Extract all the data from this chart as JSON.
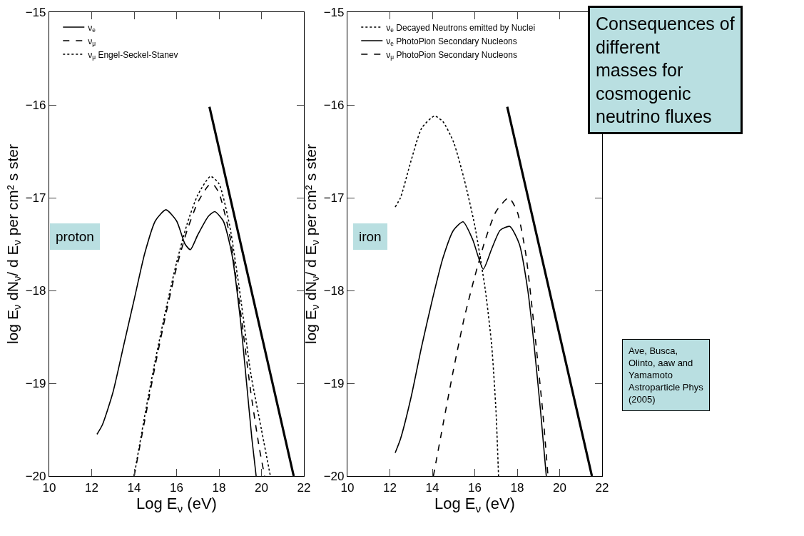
{
  "chart_data": [
    {
      "type": "line",
      "xlabel": "Log E$_{ν}$ (eV)",
      "ylabel": "log E$_{ν}$ dN$_{ν}$/ d E$_{ν}$ per cm² s ster",
      "xlim": [
        10,
        22
      ],
      "ylim": [
        -20,
        -15
      ],
      "xticks": [
        10,
        12,
        14,
        16,
        18,
        20,
        22
      ],
      "yticks": [
        -20,
        -19,
        -18,
        -17,
        -16,
        -15
      ],
      "legend": "top left",
      "annotations": [
        "proton"
      ],
      "series": [
        {
          "name": "ν$_{e}$",
          "color": "#000000",
          "line_style": "solid",
          "x": [
            12.25,
            12.5,
            13,
            13.5,
            14,
            14.5,
            15,
            15.5,
            16,
            16.4,
            16.65,
            17,
            17.5,
            17.8,
            18.2,
            18.6,
            19,
            19.3,
            19.55,
            19.75
          ],
          "values": [
            -19.55,
            -19.45,
            -19.1,
            -18.6,
            -18.1,
            -17.6,
            -17.25,
            -17.13,
            -17.25,
            -17.5,
            -17.56,
            -17.4,
            -17.2,
            -17.15,
            -17.25,
            -17.6,
            -18.3,
            -19.0,
            -19.6,
            -20
          ]
        },
        {
          "name": "ν$_{μ}$",
          "color": "#000000",
          "line_style": "dashed",
          "x": [
            14,
            14.5,
            15,
            15.5,
            16,
            16.5,
            17,
            17.5,
            17.7,
            18,
            18.5,
            19,
            19.5,
            19.9,
            20.15
          ],
          "values": [
            -20,
            -19.4,
            -18.8,
            -18.25,
            -17.75,
            -17.35,
            -17.05,
            -16.87,
            -16.85,
            -16.95,
            -17.4,
            -18.2,
            -19.1,
            -19.7,
            -20
          ]
        },
        {
          "name": "ν$_{μ}$ Engel-Seckel-Stanev",
          "color": "#000000",
          "line_style": "dotted",
          "x": [
            14,
            14.5,
            15,
            15.5,
            16,
            16.5,
            17,
            17.6,
            18,
            18.5,
            19,
            19.5,
            20,
            20.42
          ],
          "values": [
            -20,
            -19.35,
            -18.75,
            -18.2,
            -17.7,
            -17.28,
            -16.97,
            -16.77,
            -16.85,
            -17.3,
            -18.05,
            -18.9,
            -19.5,
            -20
          ]
        },
        {
          "color": "#000000",
          "line_style": "solid",
          "x": [
            17.55,
            21.52
          ],
          "values": [
            -16.02,
            -20
          ]
        }
      ]
    },
    {
      "type": "line",
      "xlabel": "Log E$_{ν}$ (eV)",
      "ylabel": "log E$_{ν}$ dN$_{ν}$/ d E$_{ν}$ per cm² s ster",
      "xlim": [
        10,
        22
      ],
      "ylim": [
        -20,
        -15
      ],
      "xticks": [
        10,
        12,
        14,
        16,
        18,
        20,
        22
      ],
      "yticks": [
        -20,
        -19,
        -18,
        -17,
        -16,
        -15
      ],
      "legend": "top left",
      "annotations": [
        "iron",
        "Consequences of different masses for cosmogenic neutrino fluxes",
        "Ave, Busca, Olinto, aaw and Yamamoto Astroparticle Phys (2005)"
      ],
      "series": [
        {
          "name": "ν$_{e}$ Decayed Neutrons emitted by Nuclei",
          "color": "#000000",
          "line_style": "dotted",
          "x": [
            12.25,
            12.5,
            13,
            13.5,
            14.1,
            14.5,
            15,
            15.5,
            16,
            16.5,
            16.8,
            17.0,
            17.12
          ],
          "values": [
            -17.1,
            -17.0,
            -16.6,
            -16.25,
            -16.12,
            -16.18,
            -16.4,
            -16.8,
            -17.3,
            -18.0,
            -18.6,
            -19.3,
            -20
          ]
        },
        {
          "name": "ν$_{e}$ PhotoPion Secondary Nucleons",
          "color": "#000000",
          "line_style": "solid",
          "x": [
            12.25,
            12.5,
            13,
            13.5,
            14,
            14.5,
            15,
            15.45,
            15.9,
            16.4,
            16.8,
            17.2,
            17.65,
            18.1,
            18.5,
            18.8,
            19.1,
            19.37
          ],
          "values": [
            -19.75,
            -19.6,
            -19.15,
            -18.6,
            -18.1,
            -17.65,
            -17.35,
            -17.26,
            -17.45,
            -17.77,
            -17.55,
            -17.35,
            -17.31,
            -17.5,
            -18.0,
            -18.6,
            -19.3,
            -20
          ]
        },
        {
          "name": "ν$_{μ}$ PhotoPion Secondary Nucleons",
          "color": "#000000",
          "line_style": "dashed",
          "x": [
            14.05,
            14.5,
            15,
            15.5,
            16,
            16.5,
            17,
            17.6,
            18,
            18.4,
            18.8,
            19.2,
            19.45
          ],
          "values": [
            -20,
            -19.45,
            -18.85,
            -18.3,
            -17.85,
            -17.45,
            -17.15,
            -17.0,
            -17.15,
            -17.6,
            -18.4,
            -19.3,
            -20
          ]
        },
        {
          "color": "#000000",
          "line_style": "solid",
          "x": [
            17.53,
            21.52
          ],
          "values": [
            -16.02,
            -20
          ]
        }
      ]
    }
  ]
}
